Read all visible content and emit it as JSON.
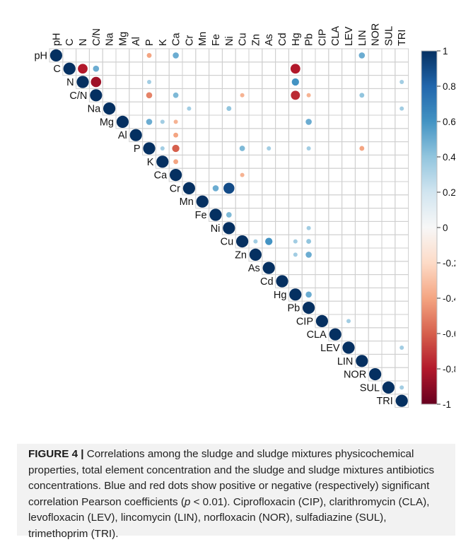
{
  "figure": {
    "caption_label": "FIGURE 4 |",
    "caption_text": " Correlations among the sludge and sludge mixtures physicochemical properties, total element concentration and the sludge and sludge mixtures antibiotics concentrations. Blue and red dots show positive or negative (respectively) significant correlation Pearson coefficients (",
    "caption_p": "p",
    "caption_text2": " < 0.01). Ciprofloxacin (CIP), clarithromycin (CLA), levofloxacin (LEV), lincomycin (LIN), norfloxacin (NOR), sulfadiazine (SUL), trimethoprim (TRI)."
  },
  "chart_data": {
    "type": "heatmap",
    "variables": [
      "pH",
      "C",
      "N",
      "C/N",
      "Na",
      "Mg",
      "Al",
      "P",
      "K",
      "Ca",
      "Cr",
      "Mn",
      "Fe",
      "Ni",
      "Cu",
      "Zn",
      "As",
      "Cd",
      "Hg",
      "Pb",
      "CIP",
      "CLA",
      "LEV",
      "LIN",
      "NOR",
      "SUL",
      "TRI"
    ],
    "matrix": "upper",
    "colorbar": {
      "min": -1,
      "max": 1,
      "ticks": [
        1,
        0.8,
        0.6,
        0.4,
        0.2,
        0,
        -0.2,
        -0.4,
        -0.6,
        -0.8,
        -1
      ]
    },
    "colors": {
      "negative_strong": "#67001f",
      "neutral": "#f7f7f7",
      "positive_strong": "#053061"
    },
    "correlations": [
      {
        "row": "pH",
        "col": "pH",
        "r": 1
      },
      {
        "row": "pH",
        "col": "P",
        "r": -0.4
      },
      {
        "row": "pH",
        "col": "Ca",
        "r": 0.5
      },
      {
        "row": "pH",
        "col": "LIN",
        "r": 0.5
      },
      {
        "row": "C",
        "col": "C",
        "r": 1
      },
      {
        "row": "C",
        "col": "N",
        "r": -0.8
      },
      {
        "row": "C",
        "col": "C/N",
        "r": 0.5
      },
      {
        "row": "C",
        "col": "Hg",
        "r": -0.8
      },
      {
        "row": "N",
        "col": "N",
        "r": 1
      },
      {
        "row": "N",
        "col": "C/N",
        "r": -0.85
      },
      {
        "row": "N",
        "col": "P",
        "r": 0.35
      },
      {
        "row": "N",
        "col": "Hg",
        "r": 0.6
      },
      {
        "row": "N",
        "col": "TRI",
        "r": 0.35
      },
      {
        "row": "C/N",
        "col": "C/N",
        "r": 1
      },
      {
        "row": "C/N",
        "col": "P",
        "r": -0.5
      },
      {
        "row": "C/N",
        "col": "Ca",
        "r": 0.45
      },
      {
        "row": "C/N",
        "col": "Cu",
        "r": -0.35
      },
      {
        "row": "C/N",
        "col": "Hg",
        "r": -0.75
      },
      {
        "row": "C/N",
        "col": "Pb",
        "r": -0.35
      },
      {
        "row": "C/N",
        "col": "LIN",
        "r": 0.4
      },
      {
        "row": "Na",
        "col": "Na",
        "r": 1
      },
      {
        "row": "Na",
        "col": "Cr",
        "r": 0.35
      },
      {
        "row": "Na",
        "col": "Ni",
        "r": 0.4
      },
      {
        "row": "Na",
        "col": "TRI",
        "r": 0.35
      },
      {
        "row": "Mg",
        "col": "Mg",
        "r": 1
      },
      {
        "row": "Mg",
        "col": "P",
        "r": 0.5
      },
      {
        "row": "Mg",
        "col": "K",
        "r": 0.35
      },
      {
        "row": "Mg",
        "col": "Ca",
        "r": -0.35
      },
      {
        "row": "Mg",
        "col": "Pb",
        "r": 0.5
      },
      {
        "row": "Al",
        "col": "Al",
        "r": 1
      },
      {
        "row": "Al",
        "col": "Ca",
        "r": -0.4
      },
      {
        "row": "P",
        "col": "P",
        "r": 1
      },
      {
        "row": "P",
        "col": "K",
        "r": 0.35
      },
      {
        "row": "P",
        "col": "Ca",
        "r": -0.6
      },
      {
        "row": "P",
        "col": "Cu",
        "r": 0.45
      },
      {
        "row": "P",
        "col": "As",
        "r": 0.35
      },
      {
        "row": "P",
        "col": "Pb",
        "r": 0.35
      },
      {
        "row": "P",
        "col": "LIN",
        "r": -0.4
      },
      {
        "row": "K",
        "col": "K",
        "r": 1
      },
      {
        "row": "K",
        "col": "Ca",
        "r": -0.4
      },
      {
        "row": "Ca",
        "col": "Ca",
        "r": 1
      },
      {
        "row": "Ca",
        "col": "Cu",
        "r": -0.35
      },
      {
        "row": "Cr",
        "col": "Cr",
        "r": 1
      },
      {
        "row": "Cr",
        "col": "Fe",
        "r": 0.5
      },
      {
        "row": "Cr",
        "col": "Ni",
        "r": 0.9
      },
      {
        "row": "Mn",
        "col": "Mn",
        "r": 1
      },
      {
        "row": "Fe",
        "col": "Fe",
        "r": 1
      },
      {
        "row": "Fe",
        "col": "Ni",
        "r": 0.45
      },
      {
        "row": "Ni",
        "col": "Ni",
        "r": 1
      },
      {
        "row": "Ni",
        "col": "Pb",
        "r": 0.35
      },
      {
        "row": "Cu",
        "col": "Cu",
        "r": 1
      },
      {
        "row": "Cu",
        "col": "Zn",
        "r": 0.35
      },
      {
        "row": "Cu",
        "col": "As",
        "r": 0.6
      },
      {
        "row": "Cu",
        "col": "Hg",
        "r": 0.35
      },
      {
        "row": "Cu",
        "col": "Pb",
        "r": 0.4
      },
      {
        "row": "Zn",
        "col": "Zn",
        "r": 1
      },
      {
        "row": "Zn",
        "col": "Hg",
        "r": 0.35
      },
      {
        "row": "Zn",
        "col": "Pb",
        "r": 0.5
      },
      {
        "row": "As",
        "col": "As",
        "r": 1
      },
      {
        "row": "Cd",
        "col": "Cd",
        "r": 1
      },
      {
        "row": "Hg",
        "col": "Hg",
        "r": 1
      },
      {
        "row": "Hg",
        "col": "Pb",
        "r": 0.5
      },
      {
        "row": "Pb",
        "col": "Pb",
        "r": 1
      },
      {
        "row": "CIP",
        "col": "CIP",
        "r": 1
      },
      {
        "row": "CIP",
        "col": "LEV",
        "r": 0.35
      },
      {
        "row": "CLA",
        "col": "CLA",
        "r": 1
      },
      {
        "row": "LEV",
        "col": "LEV",
        "r": 1
      },
      {
        "row": "LEV",
        "col": "TRI",
        "r": 0.35
      },
      {
        "row": "LIN",
        "col": "LIN",
        "r": 1
      },
      {
        "row": "NOR",
        "col": "NOR",
        "r": 1
      },
      {
        "row": "SUL",
        "col": "SUL",
        "r": 1
      },
      {
        "row": "SUL",
        "col": "TRI",
        "r": 0.35
      },
      {
        "row": "TRI",
        "col": "TRI",
        "r": 1
      }
    ]
  }
}
